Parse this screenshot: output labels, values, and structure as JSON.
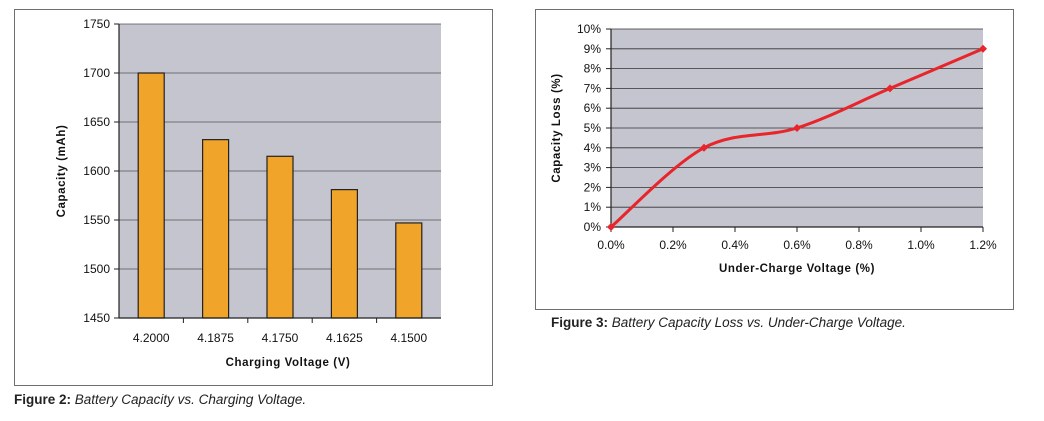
{
  "figures": [
    {
      "caption_label": "Figure 2:",
      "caption_text": "Battery Capacity vs. Charging Voltage."
    },
    {
      "caption_label": "Figure 3:",
      "caption_text": "Battery Capacity Loss vs. Under-Charge Voltage."
    }
  ],
  "colors": {
    "plot_background": "#c4c5cf",
    "bar_fill": "#f0a52a",
    "line_color": "#e8252a",
    "gridline": "#555555"
  },
  "chart_data": [
    {
      "type": "bar",
      "categories": [
        "4.2000",
        "4.1875",
        "4.1750",
        "4.1625",
        "4.1500"
      ],
      "values": [
        1700,
        1632,
        1615,
        1581,
        1547
      ],
      "xlabel": "Charging Voltage (V)",
      "ylabel": "Capacity (mAh)",
      "ylim": [
        1450,
        1750
      ],
      "yticks": [
        "1450",
        "1500",
        "1550",
        "1600",
        "1650",
        "1700",
        "1750"
      ],
      "grid": true
    },
    {
      "type": "line",
      "x": [
        0.0,
        0.3,
        0.6,
        0.9,
        1.2
      ],
      "y": [
        0,
        4,
        5,
        7,
        9
      ],
      "xlabel": "Under-Charge Voltage (%)",
      "ylabel": "Capacity Loss (%)",
      "xlim": [
        0,
        1.2
      ],
      "ylim": [
        0,
        10
      ],
      "xticks": [
        "0.0%",
        "0.2%",
        "0.4%",
        "0.6%",
        "0.8%",
        "1.0%",
        "1.2%"
      ],
      "yticks": [
        "0%",
        "1%",
        "2%",
        "3%",
        "4%",
        "5%",
        "6%",
        "7%",
        "8%",
        "9%",
        "10%"
      ],
      "grid": true
    }
  ]
}
